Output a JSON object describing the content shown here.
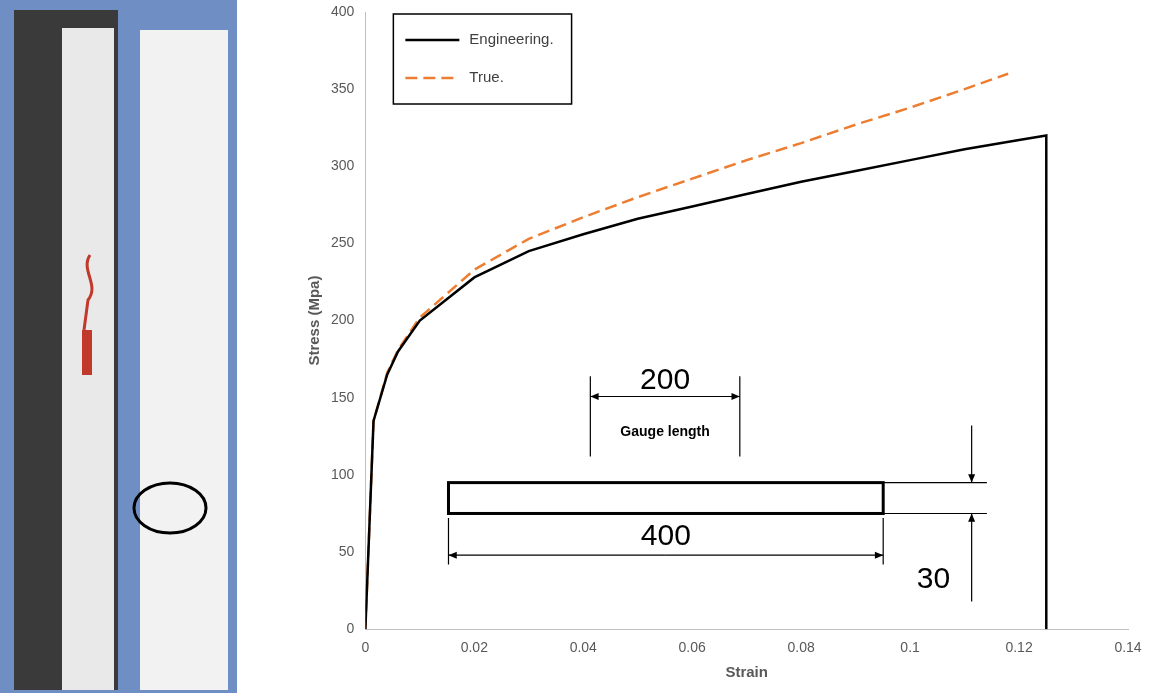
{
  "chart_data": {
    "type": "line",
    "x_label": "Strain",
    "y_label": "Stress (Mpa)",
    "xlim": [
      0,
      0.14
    ],
    "xticks": [
      0,
      0.02,
      0.04,
      0.06,
      0.08,
      0.1,
      0.12,
      0.14
    ],
    "ylim": [
      0,
      400
    ],
    "yticks": [
      0,
      50,
      100,
      150,
      200,
      250,
      300,
      350,
      400
    ],
    "grid": false,
    "legend": "upper left",
    "series": [
      {
        "name": "Engineering.",
        "color": "#000000",
        "line_style": "solid",
        "x": [
          0,
          0.0015,
          0.004,
          0.006,
          0.01,
          0.02,
          0.03,
          0.04,
          0.05,
          0.06,
          0.07,
          0.08,
          0.09,
          0.1,
          0.11,
          0.12,
          0.125,
          0.125
        ],
        "values": [
          0,
          135,
          165,
          180,
          200,
          228,
          245,
          256,
          266,
          274,
          282,
          290,
          297,
          304,
          311,
          317,
          320,
          0
        ]
      },
      {
        "name": "True.",
        "color": "#ed7d31",
        "line_style": "dashed",
        "x": [
          0,
          0.0015,
          0.004,
          0.006,
          0.01,
          0.02,
          0.03,
          0.04,
          0.05,
          0.06,
          0.07,
          0.08,
          0.09,
          0.1,
          0.11,
          0.118
        ],
        "values": [
          0,
          135,
          166,
          181,
          202,
          233,
          253,
          267,
          280,
          292,
          304,
          315,
          327,
          338,
          350,
          360
        ]
      }
    ],
    "specimen": {
      "gauge_length": 200,
      "gauge_label": "Gauge length",
      "length": 400,
      "width": 30
    }
  }
}
